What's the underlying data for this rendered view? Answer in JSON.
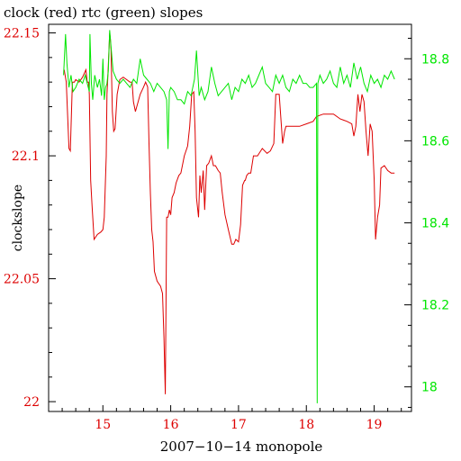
{
  "colors": {
    "clock": "#dd0000",
    "rtc": "#00e600",
    "axis": "#000000",
    "left_tick_text": "#dd0000",
    "right_tick_text": "#00e600",
    "bottom_tick_text": "#dd0000"
  },
  "chart_data": {
    "type": "line",
    "title": "clock (red) rtc (green) slopes",
    "xlabel": "2007−10−14 monopole",
    "ylabel": "clockslope",
    "ylabel_right": "",
    "grid": false,
    "xlim": [
      14.2,
      19.55
    ],
    "ylim": [
      21.996,
      22.1535
    ],
    "ylim_right": [
      17.94,
      18.884
    ],
    "x_ticks": [
      15,
      16,
      17,
      18,
      19
    ],
    "x_tick_labels": [
      "15",
      "16",
      "17",
      "18",
      "19"
    ],
    "y_ticks": [
      22,
      22.05,
      22.1,
      22.15
    ],
    "y_tick_labels": [
      "22",
      "22.05",
      "22.1",
      "22.15"
    ],
    "y_right_ticks": [
      18,
      18.2,
      18.4,
      18.6,
      18.8
    ],
    "y_right_tick_labels": [
      "18",
      "18.2",
      "18.4",
      "18.6",
      "18.8"
    ],
    "series": [
      {
        "name": "clock",
        "color": "#dd0000",
        "axis": "left",
        "x": [
          14.43,
          14.46,
          14.5,
          14.52,
          14.55,
          14.58,
          14.6,
          14.65,
          14.7,
          14.75,
          14.77,
          14.79,
          14.8,
          14.82,
          14.84,
          14.87,
          14.92,
          14.97,
          15.0,
          15.02,
          15.05,
          15.06,
          15.07,
          15.1,
          15.11,
          15.12,
          15.14,
          15.16,
          15.18,
          15.21,
          15.25,
          15.3,
          15.35,
          15.4,
          15.43,
          15.45,
          15.48,
          15.5,
          15.55,
          15.6,
          15.63,
          15.66,
          15.68,
          15.7,
          15.72,
          15.74,
          15.76,
          15.8,
          15.85,
          15.88,
          15.9,
          15.92,
          15.94,
          15.96,
          15.98,
          16.0,
          16.02,
          16.05,
          16.08,
          16.12,
          16.15,
          16.2,
          16.25,
          16.28,
          16.31,
          16.34,
          16.36,
          16.38,
          16.41,
          16.43,
          16.45,
          16.48,
          16.5,
          16.53,
          16.56,
          16.6,
          16.63,
          16.66,
          16.7,
          16.73,
          16.76,
          16.8,
          16.85,
          16.9,
          16.93,
          16.96,
          17.0,
          17.03,
          17.06,
          17.09,
          17.1,
          17.12,
          17.15,
          17.18,
          17.22,
          17.28,
          17.35,
          17.42,
          17.47,
          17.52,
          17.55,
          17.6,
          17.65,
          17.68,
          17.7,
          17.74,
          17.8,
          17.9,
          18.0,
          18.1,
          18.15,
          18.25,
          18.4,
          18.5,
          18.6,
          18.67,
          18.7,
          18.73,
          18.76,
          18.79,
          18.82,
          18.85,
          18.88,
          18.91,
          18.94,
          18.97,
          19.0,
          19.02,
          19.05,
          19.08,
          19.1,
          19.15,
          19.2,
          19.25,
          19.3
        ],
        "values": [
          22.135,
          22.13,
          22.103,
          22.102,
          22.13,
          22.13,
          22.131,
          22.13,
          22.132,
          22.135,
          22.13,
          22.13,
          22.125,
          22.09,
          22.08,
          22.066,
          22.068,
          22.069,
          22.07,
          22.075,
          22.1,
          22.125,
          22.13,
          22.15,
          22.148,
          22.143,
          22.118,
          22.11,
          22.111,
          22.125,
          22.131,
          22.132,
          22.131,
          22.13,
          22.13,
          22.122,
          22.118,
          22.12,
          22.125,
          22.128,
          22.13,
          22.128,
          22.105,
          22.085,
          22.07,
          22.065,
          22.053,
          22.049,
          22.047,
          22.044,
          22.026,
          22.003,
          22.075,
          22.075,
          22.078,
          22.076,
          22.083,
          22.085,
          22.089,
          22.092,
          22.093,
          22.1,
          22.104,
          22.112,
          22.125,
          22.126,
          22.11,
          22.083,
          22.075,
          22.092,
          22.085,
          22.094,
          22.078,
          22.096,
          22.097,
          22.1,
          22.096,
          22.096,
          22.094,
          22.093,
          22.085,
          22.076,
          22.07,
          22.064,
          22.064,
          22.066,
          22.065,
          22.072,
          22.088,
          22.09,
          22.09,
          22.092,
          22.093,
          22.093,
          22.1,
          22.1,
          22.103,
          22.101,
          22.102,
          22.105,
          22.125,
          22.125,
          22.105,
          22.11,
          22.112,
          22.112,
          22.112,
          22.112,
          22.113,
          22.114,
          22.116,
          22.117,
          22.117,
          22.115,
          22.114,
          22.113,
          22.108,
          22.112,
          22.125,
          22.118,
          22.125,
          22.122,
          22.11,
          22.1,
          22.113,
          22.11,
          22.09,
          22.066,
          22.075,
          22.08,
          22.095,
          22.096,
          22.094,
          22.093,
          22.093
        ]
      },
      {
        "name": "rtc",
        "color": "#00e600",
        "axis": "right",
        "x": [
          14.42,
          14.45,
          14.47,
          14.5,
          14.53,
          14.56,
          14.6,
          14.65,
          14.7,
          14.74,
          14.77,
          14.8,
          14.81,
          14.83,
          14.85,
          14.88,
          14.92,
          14.95,
          14.98,
          15.0,
          15.02,
          15.04,
          15.06,
          15.08,
          15.1,
          15.12,
          15.15,
          15.2,
          15.25,
          15.3,
          15.35,
          15.4,
          15.45,
          15.5,
          15.55,
          15.6,
          15.65,
          15.7,
          15.75,
          15.8,
          15.85,
          15.9,
          15.94,
          15.96,
          15.98,
          16.0,
          16.05,
          16.1,
          16.15,
          16.2,
          16.25,
          16.3,
          16.35,
          16.38,
          16.42,
          16.45,
          16.5,
          16.55,
          16.6,
          16.65,
          16.7,
          16.75,
          16.8,
          16.85,
          16.9,
          16.95,
          17.0,
          17.05,
          17.1,
          17.15,
          17.2,
          17.25,
          17.3,
          17.35,
          17.4,
          17.45,
          17.5,
          17.55,
          17.6,
          17.65,
          17.7,
          17.75,
          17.8,
          17.85,
          17.9,
          17.95,
          18.0,
          18.05,
          18.1,
          18.15,
          18.16,
          18.17,
          18.2,
          18.25,
          18.3,
          18.35,
          18.4,
          18.45,
          18.5,
          18.55,
          18.6,
          18.65,
          18.7,
          18.75,
          18.8,
          18.85,
          18.9,
          18.95,
          19.0,
          19.05,
          19.1,
          19.15,
          19.2,
          19.25,
          19.3
        ],
        "values": [
          18.76,
          18.86,
          18.79,
          18.73,
          18.76,
          18.72,
          18.73,
          18.75,
          18.74,
          18.76,
          18.74,
          18.72,
          18.86,
          18.74,
          18.7,
          18.76,
          18.73,
          18.75,
          18.71,
          18.8,
          18.7,
          18.73,
          18.74,
          18.77,
          18.87,
          18.83,
          18.77,
          18.75,
          18.74,
          18.75,
          18.74,
          18.73,
          18.75,
          18.74,
          18.8,
          18.76,
          18.75,
          18.74,
          18.72,
          18.74,
          18.73,
          18.72,
          18.7,
          18.58,
          18.72,
          18.73,
          18.72,
          18.7,
          18.7,
          18.69,
          18.72,
          18.71,
          18.75,
          18.82,
          18.71,
          18.73,
          18.7,
          18.72,
          18.78,
          18.74,
          18.71,
          18.72,
          18.73,
          18.74,
          18.7,
          18.73,
          18.72,
          18.75,
          18.74,
          18.76,
          18.73,
          18.74,
          18.76,
          18.78,
          18.74,
          18.73,
          18.72,
          18.76,
          18.74,
          18.76,
          18.73,
          18.72,
          18.75,
          18.74,
          18.76,
          18.74,
          18.74,
          18.73,
          18.73,
          18.74,
          17.96,
          18.74,
          18.76,
          18.74,
          18.75,
          18.77,
          18.74,
          18.73,
          18.78,
          18.74,
          18.76,
          18.73,
          18.79,
          18.75,
          18.78,
          18.74,
          18.72,
          18.76,
          18.74,
          18.75,
          18.73,
          18.76,
          18.75,
          18.77,
          18.75
        ]
      }
    ]
  }
}
